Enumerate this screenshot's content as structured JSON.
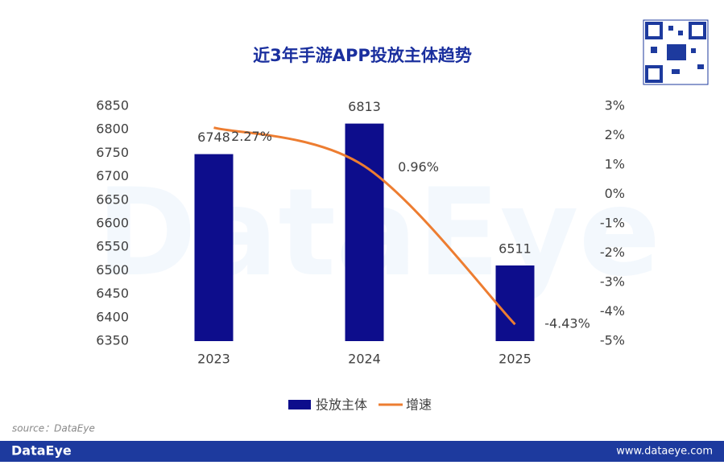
{
  "chart_data": {
    "type": "bar",
    "title": "近3年手游APP投放主体趋势",
    "categories": [
      "2023",
      "2024",
      "2025"
    ],
    "series": [
      {
        "name": "投放主体",
        "type": "bar",
        "color": "#0d0d8c",
        "values": [
          6748,
          6813,
          6511
        ]
      },
      {
        "name": "增速",
        "type": "line",
        "axis": "y2",
        "color": "#ed7d31",
        "values": [
          2.27,
          0.96,
          -4.43
        ],
        "value_labels": [
          "2.27%",
          "0.96%",
          "-4.43%"
        ]
      }
    ],
    "ylim": [
      6350,
      6850
    ],
    "yticks": [
      6350,
      6400,
      6450,
      6500,
      6550,
      6600,
      6650,
      6700,
      6750,
      6800,
      6850
    ],
    "y2lim": [
      -5,
      3
    ],
    "y2ticks": [
      {
        "value": -5,
        "label": "-5%"
      },
      {
        "value": -4,
        "label": "-4%"
      },
      {
        "value": -3,
        "label": "-3%"
      },
      {
        "value": -2,
        "label": "-2%"
      },
      {
        "value": -1,
        "label": "-1%"
      },
      {
        "value": 0,
        "label": "0%"
      },
      {
        "value": 1,
        "label": "1%"
      },
      {
        "value": 2,
        "label": "2%"
      },
      {
        "value": 3,
        "label": "3%"
      }
    ],
    "grid": false,
    "legend": "bottom",
    "watermark": "DataEye"
  },
  "footer": {
    "source": "source：DataEye",
    "brand": "DataEye",
    "url": "www.dataeye.com"
  }
}
